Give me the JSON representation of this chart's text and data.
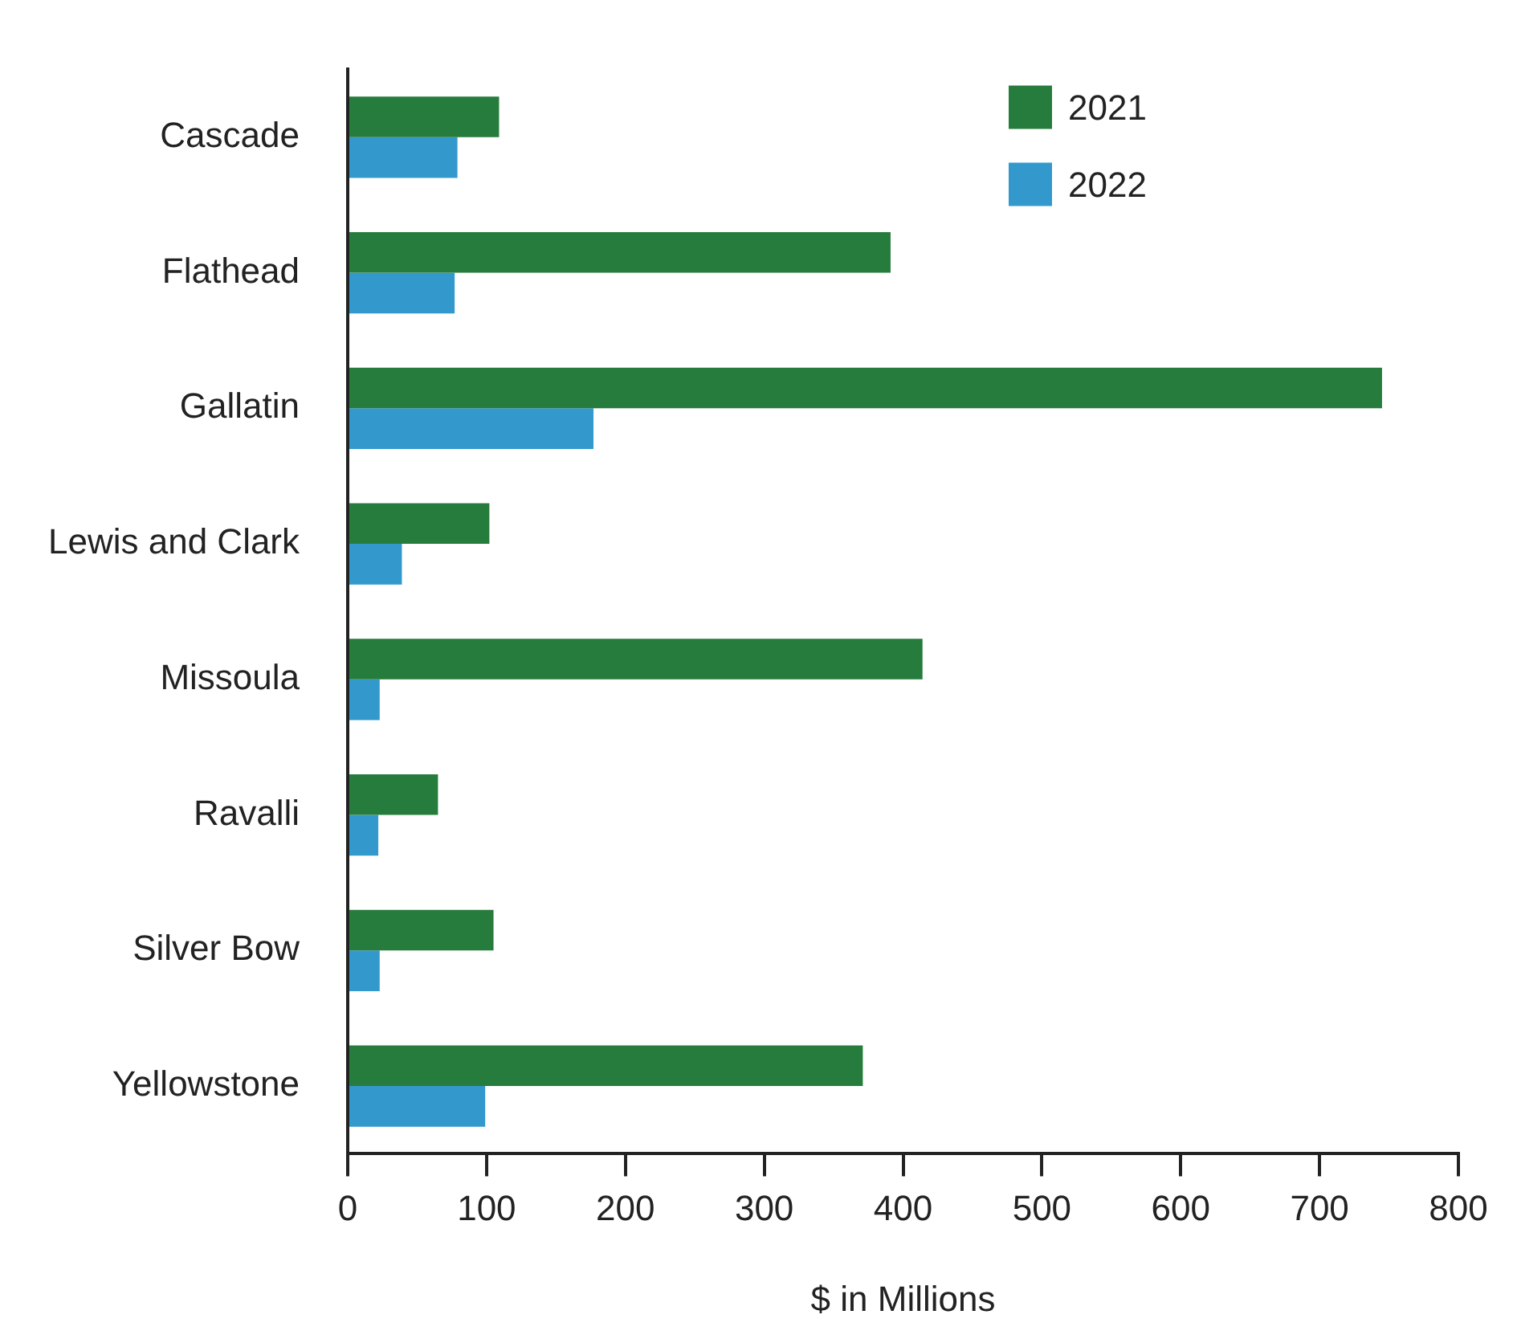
{
  "chart_data": {
    "type": "bar",
    "orientation": "horizontal",
    "xlabel": "$ in Millions",
    "categories": [
      "Cascade",
      "Flathead",
      "Gallatin",
      "Lewis and Clark",
      "Missoula",
      "Ravalli",
      "Silver Bow",
      "Yellowstone"
    ],
    "series": [
      {
        "name": "2021",
        "color": "#267c3c",
        "values": [
          109,
          391,
          745,
          102,
          414,
          65,
          105,
          371
        ]
      },
      {
        "name": "2022",
        "color": "#3399cc",
        "values": [
          79,
          77,
          177,
          39,
          23,
          22,
          23,
          99
        ]
      }
    ],
    "xlim": [
      0,
      800
    ],
    "xticks": [
      0,
      100,
      200,
      300,
      400,
      500,
      600,
      700,
      800
    ],
    "grid": false,
    "legend": "top right"
  }
}
